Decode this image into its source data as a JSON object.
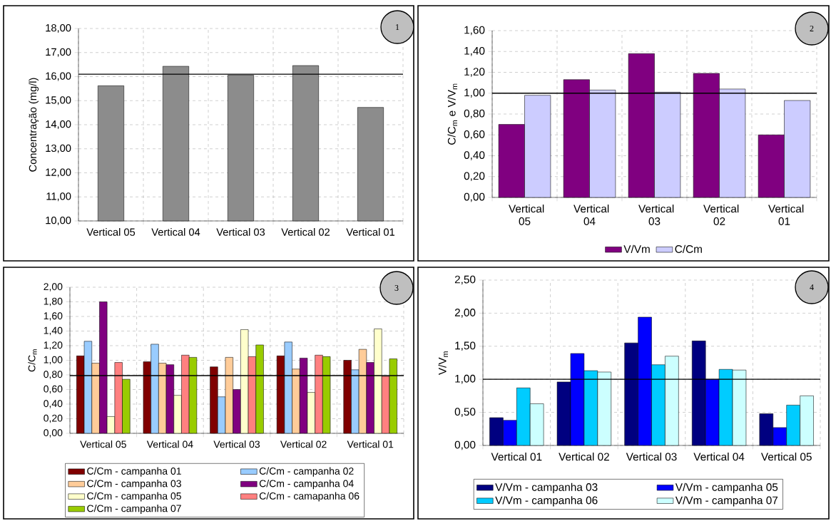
{
  "chart_data": [
    {
      "type": "bar",
      "categories": [
        "Vertical 05",
        "Vertical 04",
        "Vertical 03",
        "Vertical 02",
        "Vertical 01"
      ],
      "values": [
        15.62,
        16.43,
        16.06,
        16.46,
        14.72
      ],
      "color": "#8c8c8c",
      "ylabel": "Concentração (mg/l)",
      "ylim": [
        10,
        18
      ],
      "yticks": [
        {
          "value": 10,
          "label": "10,00"
        },
        {
          "value": 11,
          "label": "11,00"
        },
        {
          "value": 12,
          "label": "12,00"
        },
        {
          "value": 13,
          "label": "13,00"
        },
        {
          "value": 14,
          "label": "14,00"
        },
        {
          "value": 15,
          "label": "15,00"
        },
        {
          "value": 16,
          "label": "16,00"
        },
        {
          "value": 17,
          "label": "17,00"
        },
        {
          "value": 18,
          "label": "18,00"
        }
      ],
      "grid": true,
      "ref_lines": [
        {
          "axis": "y",
          "value": 16.1
        }
      ],
      "annotations": [
        "1"
      ]
    },
    {
      "type": "bar",
      "categories": [
        "Vertical 05",
        "Vertical 04",
        "Vertical 03",
        "Vertical 02",
        "Vertical 01"
      ],
      "series": [
        {
          "name": "V/Vm",
          "color": "#800080",
          "values": [
            0.7,
            1.13,
            1.38,
            1.19,
            0.6
          ]
        },
        {
          "name": "C/Cm",
          "color": "#ccccff",
          "values": [
            0.98,
            1.03,
            1.01,
            1.04,
            0.93
          ]
        }
      ],
      "ylabel": "C/C$_{m}$ e V/V$_{m}$",
      "ylim": [
        0,
        1.6
      ],
      "yticks": [
        {
          "value": 0,
          "label": "0,00"
        },
        {
          "value": 0.2,
          "label": "0,20"
        },
        {
          "value": 0.4,
          "label": "0,40"
        },
        {
          "value": 0.6,
          "label": "0,60"
        },
        {
          "value": 0.8,
          "label": "0,80"
        },
        {
          "value": 1.0,
          "label": "1,00"
        },
        {
          "value": 1.2,
          "label": "1,20"
        },
        {
          "value": 1.4,
          "label": "1,40"
        },
        {
          "value": 1.6,
          "label": "1,60"
        }
      ],
      "grid": true,
      "legend": "bottom",
      "ref_lines": [
        {
          "axis": "y",
          "value": 1.0
        }
      ],
      "annotations": [
        "2"
      ]
    },
    {
      "type": "bar",
      "categories": [
        "Vertical 05",
        "Vertical 04",
        "Vertical 03",
        "Vertical 02",
        "Vertical 01"
      ],
      "series": [
        {
          "name": "C/Cm - campanha 01",
          "color": "#800000",
          "values": [
            1.06,
            0.98,
            0.91,
            1.06,
            1.0
          ]
        },
        {
          "name": "C/Cm - campanha 02",
          "color": "#99ccff",
          "values": [
            1.26,
            1.22,
            0.5,
            1.25,
            0.87
          ]
        },
        {
          "name": "C/Cm - campanha 03",
          "color": "#ffcc99",
          "values": [
            0.96,
            0.96,
            1.04,
            0.88,
            1.15
          ]
        },
        {
          "name": "C/Cm - campanha 04",
          "color": "#800080",
          "values": [
            1.8,
            0.94,
            0.6,
            1.03,
            0.97
          ]
        },
        {
          "name": "C/Cm - campanha 05",
          "color": "#ffffcc",
          "values": [
            0.23,
            0.52,
            1.42,
            0.56,
            1.43
          ]
        },
        {
          "name": "C/Cm - camapanha 06",
          "color": "#ff8080",
          "values": [
            0.97,
            1.07,
            1.05,
            1.07,
            0.78
          ]
        },
        {
          "name": "C/Cm - campanha 07",
          "color": "#99cc00",
          "values": [
            0.74,
            1.04,
            1.21,
            1.05,
            1.02
          ]
        }
      ],
      "ylabel": "C/C$_{m}$",
      "ylim": [
        0,
        2.0
      ],
      "yticks": [
        {
          "value": 0,
          "label": "0,00"
        },
        {
          "value": 0.2,
          "label": "0,20"
        },
        {
          "value": 0.4,
          "label": "0,40"
        },
        {
          "value": 0.6,
          "label": "0,60"
        },
        {
          "value": 0.8,
          "label": "0,80"
        },
        {
          "value": 1.0,
          "label": "1,00"
        },
        {
          "value": 1.2,
          "label": "1,20"
        },
        {
          "value": 1.4,
          "label": "1,40"
        },
        {
          "value": 1.6,
          "label": "1,60"
        },
        {
          "value": 1.8,
          "label": "1,80"
        },
        {
          "value": 2.0,
          "label": "2,00"
        }
      ],
      "grid": true,
      "legend": "bottom",
      "ref_lines": [
        {
          "axis": "y",
          "value": 0.79
        }
      ],
      "annotations": [
        "3"
      ]
    },
    {
      "type": "bar",
      "categories": [
        "Vertical 01",
        "Vertical 02",
        "Vertical 03",
        "Vertical 04",
        "Vertical 05"
      ],
      "series": [
        {
          "name": "V/Vm - campanha 03",
          "color": "#000080",
          "values": [
            0.42,
            0.96,
            1.55,
            1.58,
            0.48
          ]
        },
        {
          "name": "V/Vm - campanha 05",
          "color": "#0000ff",
          "values": [
            0.38,
            1.39,
            1.94,
            1.0,
            0.27
          ]
        },
        {
          "name": "V/Vm - campanha 06",
          "color": "#00ccff",
          "values": [
            0.87,
            1.13,
            1.22,
            1.15,
            0.61
          ]
        },
        {
          "name": "V/Vm - campanha 07",
          "color": "#ccffff",
          "values": [
            0.63,
            1.11,
            1.35,
            1.14,
            0.75
          ]
        }
      ],
      "ylabel": "V/V$_{m}$",
      "ylim": [
        0,
        2.5
      ],
      "yticks": [
        {
          "value": 0,
          "label": "0,00"
        },
        {
          "value": 0.5,
          "label": "0,50"
        },
        {
          "value": 1.0,
          "label": "1,00"
        },
        {
          "value": 1.5,
          "label": "1,50"
        },
        {
          "value": 2.0,
          "label": "2,00"
        },
        {
          "value": 2.5,
          "label": "2,50"
        }
      ],
      "grid": true,
      "legend": "bottom",
      "ref_lines": [
        {
          "axis": "y",
          "value": 1.0
        }
      ],
      "annotations": [
        "4"
      ]
    }
  ]
}
